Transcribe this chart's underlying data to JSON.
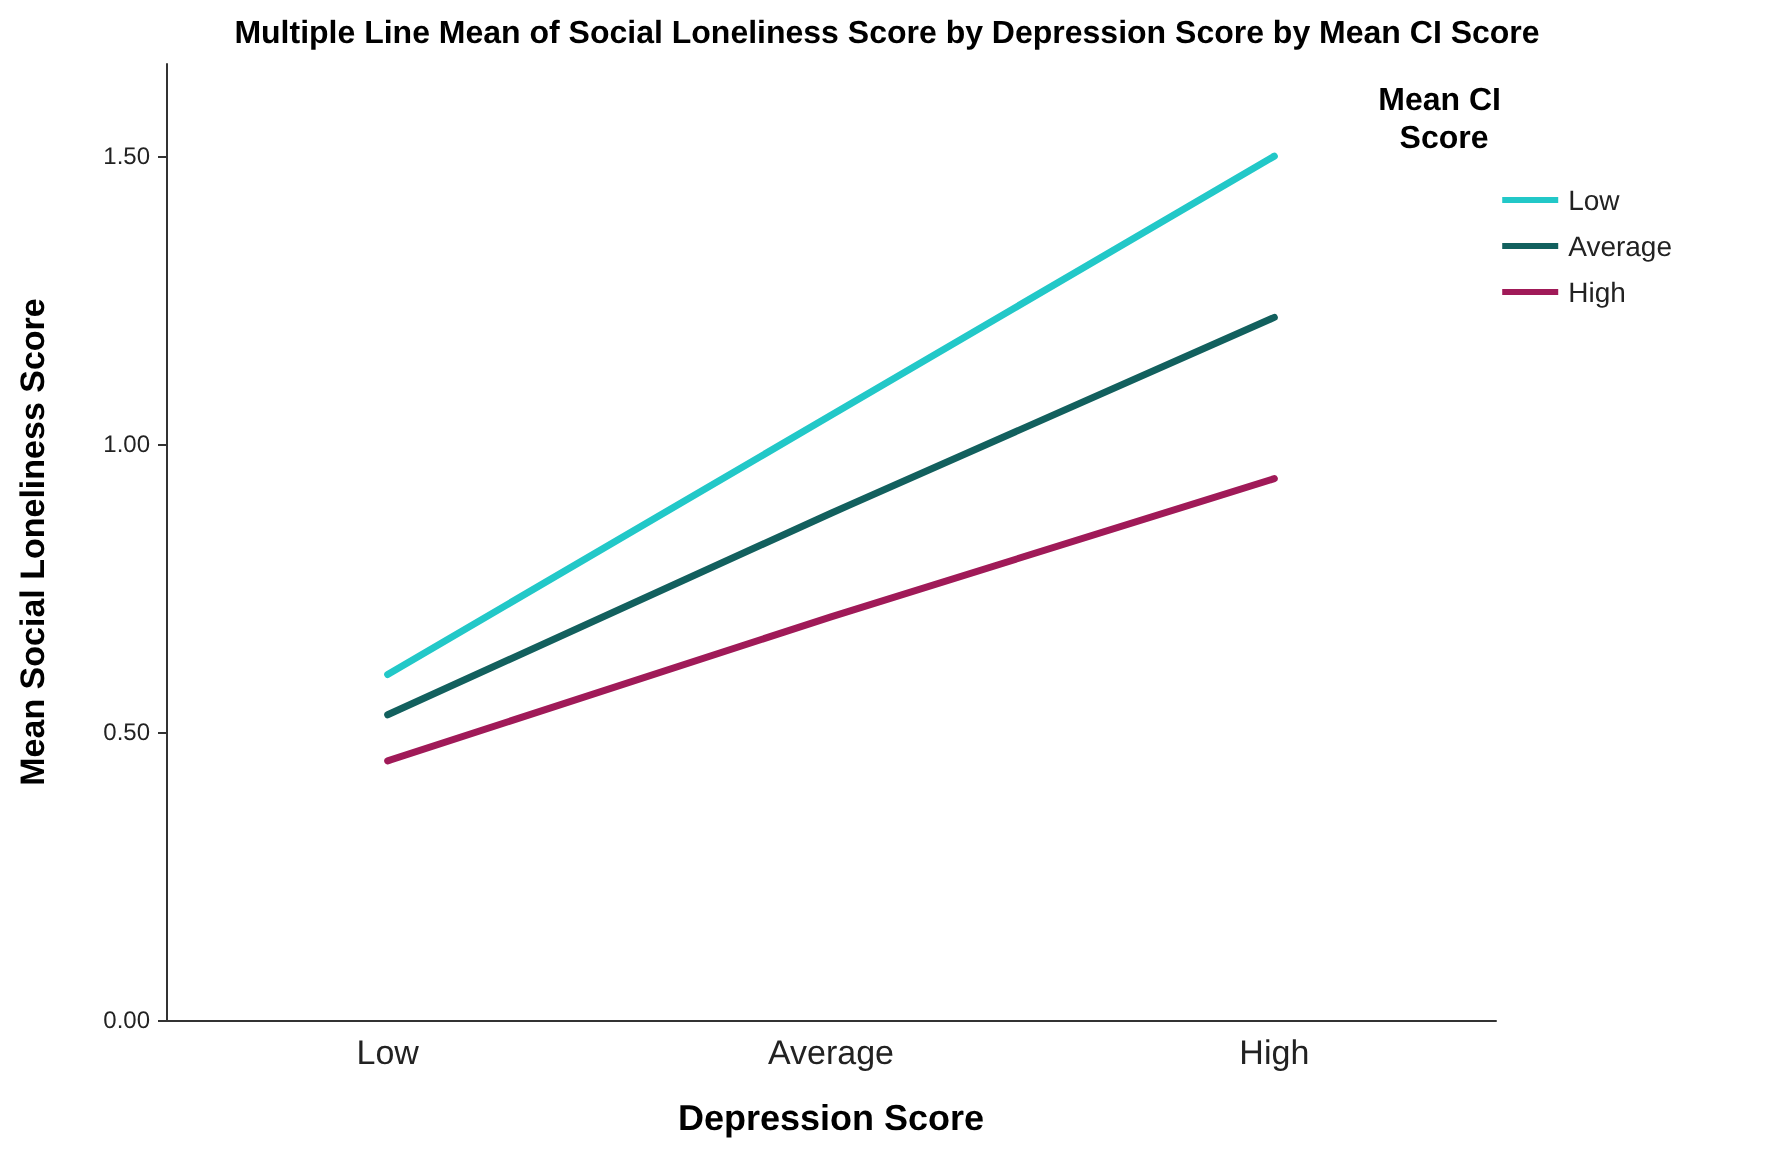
{
  "chart_data": {
    "type": "line",
    "title": "Multiple Line Mean of Social Loneliness Score by Depression Score by Mean CI Score",
    "xlabel": "Depression Score",
    "ylabel": "Mean Social Loneliness Score",
    "legend_title": "Mean CI Score",
    "categories": [
      "Low",
      "Average",
      "High"
    ],
    "series": [
      {
        "name": "Low",
        "color": "#22c8c8",
        "values": [
          0.6,
          1.05,
          1.5
        ]
      },
      {
        "name": "Average",
        "color": "#12605e",
        "values": [
          0.53,
          0.88,
          1.22
        ]
      },
      {
        "name": "High",
        "color": "#a01a58",
        "values": [
          0.45,
          0.7,
          0.94
        ]
      }
    ],
    "ylim": [
      0,
      1.66
    ],
    "yticks": [
      {
        "value": 0,
        "label": "0.00"
      },
      {
        "value": 0.5,
        "label": "0.50"
      },
      {
        "value": 1,
        "label": "1.00"
      },
      {
        "value": 1.5,
        "label": "1.50"
      }
    ],
    "grid": false,
    "legend": "top right",
    "marker": "none",
    "line_style": "solid"
  }
}
